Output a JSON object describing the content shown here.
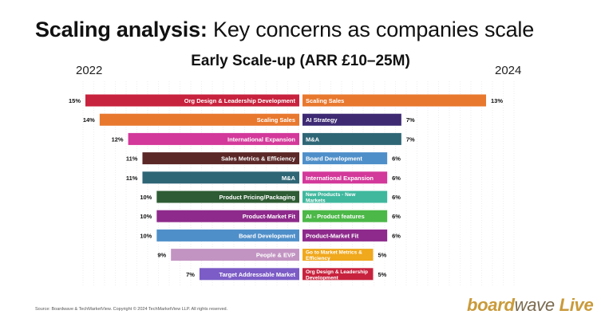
{
  "header": {
    "title_bold": "Scaling analysis:",
    "title_rest": "Key concerns as companies scale",
    "subtitle": "Early Scale-up (ARR £10–25M)",
    "year_left": "2022",
    "year_right": "2024"
  },
  "chart_data": {
    "type": "bar",
    "title": "Early Scale-up (ARR £10–25M)",
    "orientation": "horizontal-butterfly",
    "unit": "%",
    "series": [
      {
        "name": "2022",
        "direction": "left",
        "categories": [
          "Org Design & Leadership Development",
          "Scaling Sales",
          "International Expansion",
          "Sales Metrics & Efficiency",
          "M&A",
          "Product Pricing/Packaging",
          "Product-Market Fit",
          "Board Development",
          "People & EVP",
          "Target Addressable Market"
        ],
        "values": [
          15,
          14,
          12,
          11,
          11,
          10,
          10,
          10,
          9,
          7
        ],
        "colors": [
          "#c8233e",
          "#e8782e",
          "#d3399a",
          "#5b2727",
          "#2f6676",
          "#2e5c34",
          "#8e2a8c",
          "#4f8fc9",
          "#c294c2",
          "#7c5cc6"
        ]
      },
      {
        "name": "2024",
        "direction": "right",
        "categories": [
          "Scaling Sales",
          "AI Strategy",
          "M&A",
          "Board Development",
          "International Expansion",
          "New Products - New Markets",
          "AI - Product features",
          "Product-Market Fit",
          "Go to Market Metrics & Efficiency",
          "Org Design & Leadership Development"
        ],
        "values": [
          13,
          7,
          7,
          6,
          6,
          6,
          6,
          6,
          5,
          5
        ],
        "colors": [
          "#e8782e",
          "#3d2a73",
          "#2f6676",
          "#4f8fc9",
          "#d3399a",
          "#3fb89e",
          "#4cb848",
          "#8e2a8c",
          "#f0a81c",
          "#c8233e"
        ]
      }
    ],
    "value_labels_left": [
      "15%",
      "14%",
      "12%",
      "11%",
      "11%",
      "10%",
      "10%",
      "10%",
      "9%",
      "7%"
    ],
    "value_labels_right": [
      "13%",
      "7%",
      "7%",
      "6%",
      "6%",
      "6%",
      "6%",
      "6%",
      "5%",
      "5%"
    ],
    "legend": "none",
    "grid": "vertical dotted lines"
  },
  "footer": {
    "source": "Source: Boardwave & TechMarketView. Copyright © 2024 TechMarketView LLP. All rights reserved.",
    "logo_part1": "board",
    "logo_part2": "wave",
    "logo_part3": "Live"
  }
}
